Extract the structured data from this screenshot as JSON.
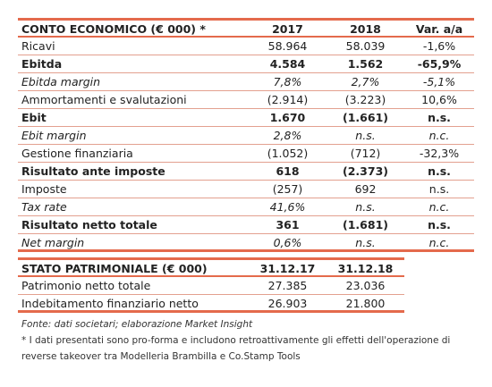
{
  "income_statement": {
    "headers": [
      "CONTO ECONOMICO (€ 000) *",
      "2017",
      "2018",
      "Var. a/a"
    ],
    "rows": [
      {
        "label": "Ricavi",
        "v2017": "58.964",
        "v2018": "58.039",
        "var": "-1,6%"
      },
      {
        "label": "Ebitda",
        "v2017": "4.584",
        "v2018": "1.562",
        "var": "-65,9%"
      },
      {
        "label": "Ebitda margin",
        "v2017": "7,8%",
        "v2018": "2,7%",
        "var": "-5,1%"
      },
      {
        "label": "Ammortamenti e svalutazioni",
        "v2017": "(2.914)",
        "v2018": "(3.223)",
        "var": "10,6%"
      },
      {
        "label": "Ebit",
        "v2017": "1.670",
        "v2018": "(1.661)",
        "var": "n.s."
      },
      {
        "label": "Ebit margin",
        "v2017": "2,8%",
        "v2018": "n.s.",
        "var": "n.c."
      },
      {
        "label": "Gestione finanziaria",
        "v2017": "(1.052)",
        "v2018": "(712)",
        "var": "-32,3%"
      },
      {
        "label": "Risultato ante imposte",
        "v2017": "618",
        "v2018": "(2.373)",
        "var": "n.s."
      },
      {
        "label": "Imposte",
        "v2017": "(257)",
        "v2018": "692",
        "var": "n.s."
      },
      {
        "label": "Tax rate",
        "v2017": "41,6%",
        "v2018": "n.s.",
        "var": "n.c."
      },
      {
        "label": "Risultato netto totale",
        "v2017": "361",
        "v2018": "(1.681)",
        "var": "n.s."
      },
      {
        "label": "Net margin",
        "v2017": "0,6%",
        "v2018": "n.s.",
        "var": "n.c."
      }
    ]
  },
  "balance_sheet": {
    "headers": [
      "STATO PATRIMONIALE (€ 000)",
      "31.12.17",
      "31.12.18"
    ],
    "rows": [
      {
        "label": "Patrimonio netto totale",
        "v2017": "27.385",
        "v2018": "23.036"
      },
      {
        "label": "Indebitamento finanziario netto",
        "v2017": "26.903",
        "v2018": "21.800"
      }
    ]
  },
  "notes": {
    "source": "Fonte: dati societari; elaborazione Market Insight",
    "footnote": "* I dati presentati sono pro-forma e includono retroattivamente gli effetti dell'operazione di reverse takeover tra Modelleria Brambilla e Co.Stamp Tools"
  },
  "colors": {
    "accent": "#e46a4c",
    "rule": "#e3a08f"
  }
}
